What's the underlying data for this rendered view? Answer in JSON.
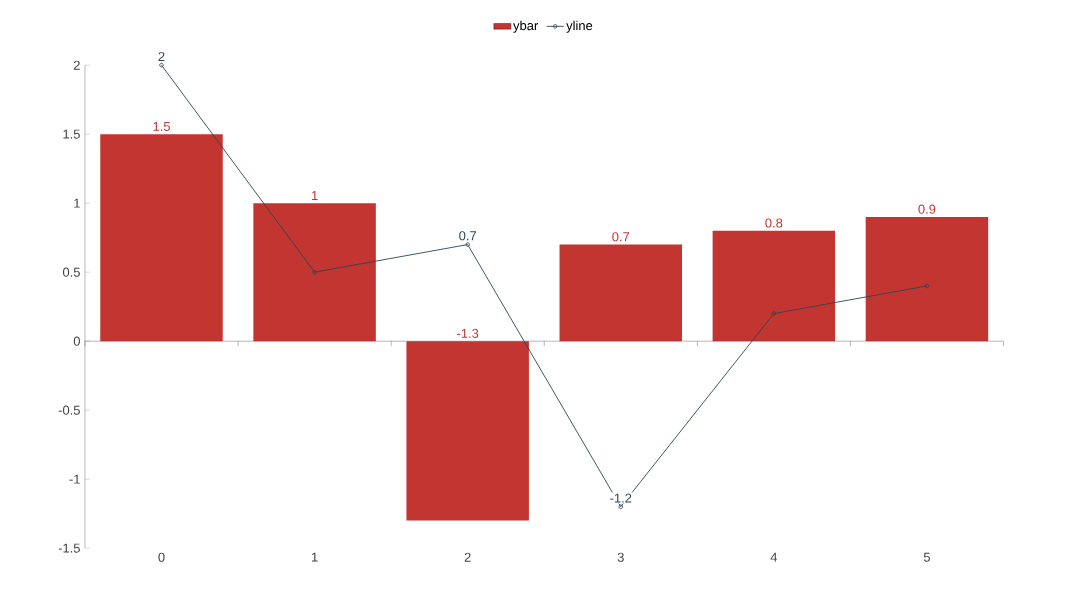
{
  "chart_data": {
    "type": "bar",
    "categories": [
      "0",
      "1",
      "2",
      "3",
      "4",
      "5"
    ],
    "series": [
      {
        "name": "ybar",
        "color": "#c23531",
        "values": [
          1.5,
          1,
          -1.3,
          0.7,
          0.8,
          0.9
        ],
        "value_labels": [
          "1.5",
          "1",
          "-1.3",
          "0.7",
          "0.8",
          "0.9"
        ]
      },
      {
        "name": "yline",
        "type": "line",
        "color": "#2f4554",
        "values": [
          2,
          0.5,
          0.7,
          -1.2,
          0.2,
          0.4
        ],
        "value_labels": [
          "2",
          null,
          "0.7",
          "-1.2",
          null,
          null
        ]
      }
    ],
    "ylim": [
      -1.5,
      2
    ],
    "yticks": [
      -1.5,
      -1,
      -0.5,
      0,
      0.5,
      1,
      1.5,
      2
    ],
    "legend": "top",
    "marker": "circle"
  }
}
